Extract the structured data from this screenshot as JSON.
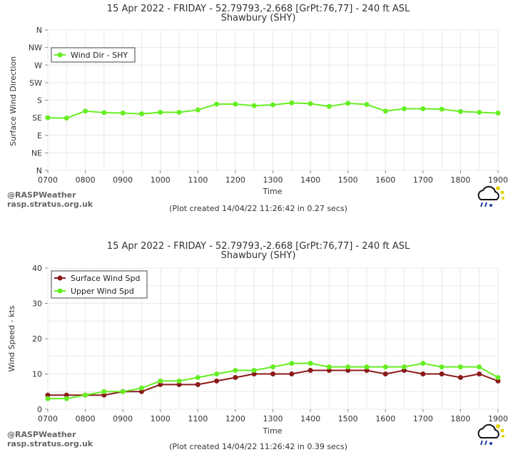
{
  "panels": [
    {
      "title_line1": "15 Apr 2022 - FRIDAY - 52.79793,-2.668 [GrPt:76,77]  - 240 ft ASL",
      "title_line2": "Shawbury (SHY)",
      "xlabel": "Time",
      "ylabel": "Surface Wind Direction",
      "credit_line1": "@RASPWeather",
      "credit_line2": "rasp.stratus.org.uk",
      "plot_created": "(Plot created 14/04/22 11:26:42 in 0.27 secs)"
    },
    {
      "title_line1": "15 Apr 2022 - FRIDAY - 52.79793,-2.668 [GrPt:76,77]  - 240 ft ASL",
      "title_line2": "Shawbury (SHY)",
      "xlabel": "Time",
      "ylabel": "Wind Speed - kts",
      "credit_line1": "@RASPWeather",
      "credit_line2": "rasp.stratus.org.uk",
      "plot_created": "(Plot created 14/04/22 11:26:42 in 0.39 secs)"
    }
  ],
  "chart_data": [
    {
      "type": "line",
      "x": [
        "0700",
        "0730",
        "0800",
        "0830",
        "0900",
        "0930",
        "1000",
        "1030",
        "1100",
        "1130",
        "1200",
        "1230",
        "1300",
        "1330",
        "1400",
        "1430",
        "1500",
        "1530",
        "1600",
        "1630",
        "1700",
        "1730",
        "1800",
        "1830",
        "1900"
      ],
      "x_tick_labels": [
        "0700",
        "0800",
        "0900",
        "1000",
        "1100",
        "1200",
        "1300",
        "1400",
        "1500",
        "1600",
        "1700",
        "1800",
        "1900"
      ],
      "y_tick_labels": [
        "N",
        "NW",
        "W",
        "SW",
        "S",
        "SE",
        "E",
        "NE",
        "N"
      ],
      "y_tick_values": [
        360,
        315,
        270,
        225,
        180,
        135,
        90,
        45,
        0
      ],
      "ylim": [
        0,
        360
      ],
      "grid": true,
      "legend_position": "top-left",
      "series": [
        {
          "name": "Wind Dir - SHY",
          "color": "#66ee22",
          "values": [
            135,
            134,
            152,
            148,
            147,
            145,
            149,
            149,
            155,
            170,
            170,
            166,
            168,
            173,
            171,
            164,
            172,
            169,
            152,
            158,
            158,
            157,
            151,
            149,
            147
          ]
        }
      ]
    },
    {
      "type": "line",
      "x": [
        "0700",
        "0730",
        "0800",
        "0830",
        "0900",
        "0930",
        "1000",
        "1030",
        "1100",
        "1130",
        "1200",
        "1230",
        "1300",
        "1330",
        "1400",
        "1430",
        "1500",
        "1530",
        "1600",
        "1630",
        "1700",
        "1730",
        "1800",
        "1830",
        "1900"
      ],
      "x_tick_labels": [
        "0700",
        "0800",
        "0900",
        "1000",
        "1100",
        "1200",
        "1300",
        "1400",
        "1500",
        "1600",
        "1700",
        "1800",
        "1900"
      ],
      "y_ticks": [
        0,
        10,
        20,
        30,
        40
      ],
      "ylim": [
        0,
        40
      ],
      "grid": true,
      "legend_position": "top-left",
      "series": [
        {
          "name": "Surface Wind Spd",
          "color": "#8b1a1a",
          "values": [
            4,
            4,
            4,
            4,
            5,
            5,
            7,
            7,
            7,
            8,
            9,
            10,
            10,
            10,
            11,
            11,
            11,
            11,
            10,
            11,
            10,
            10,
            9,
            10,
            8
          ]
        },
        {
          "name": "Upper Wind Spd",
          "color": "#66ee22",
          "values": [
            3,
            3,
            4,
            5,
            5,
            6,
            8,
            8,
            9,
            10,
            11,
            11,
            12,
            13,
            13,
            12,
            12,
            12,
            12,
            12,
            13,
            12,
            12,
            12,
            9
          ]
        }
      ]
    }
  ]
}
